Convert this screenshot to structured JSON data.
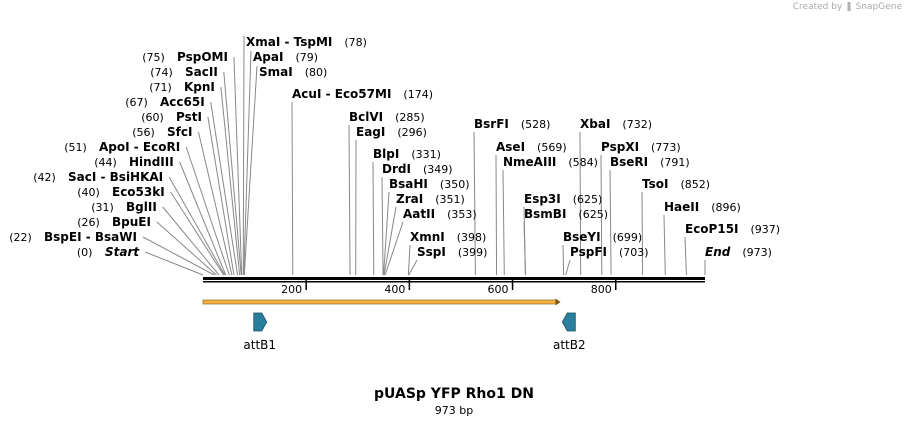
{
  "header": {
    "created_by": "Created by",
    "brand": "SnapGene"
  },
  "map": {
    "name": "pUASp YFP Rho1 DN",
    "length_label": "973 bp",
    "length": 973
  },
  "sites": [
    {
      "name": "XmaI",
      "name2": "TspMI",
      "pos": 78
    },
    {
      "name": "ApaI",
      "pos": 79
    },
    {
      "name": "SmaI",
      "pos": 80
    },
    {
      "name": "PspOMI",
      "pos": 75
    },
    {
      "name": "SacII",
      "pos": 74
    },
    {
      "name": "KpnI",
      "pos": 71
    },
    {
      "name": "Acc65I",
      "pos": 67
    },
    {
      "name": "PstI",
      "pos": 60
    },
    {
      "name": "SfcI",
      "pos": 56
    },
    {
      "name": "ApoI",
      "name2": "EcoRI",
      "pos": 51
    },
    {
      "name": "HindIII",
      "pos": 44
    },
    {
      "name": "SacI",
      "name2": "BsiHKAI",
      "pos": 42
    },
    {
      "name": "Eco53kI",
      "pos": 40
    },
    {
      "name": "BglII",
      "pos": 31
    },
    {
      "name": "BpuEI",
      "pos": 26
    },
    {
      "name": "BspEI",
      "name2": "BsaWI",
      "pos": 22
    },
    {
      "name": "Start",
      "pos": 0,
      "italic": true
    },
    {
      "name": "AcuI",
      "name2": "Eco57MI",
      "pos": 174
    },
    {
      "name": "BclVI",
      "pos": 285
    },
    {
      "name": "EagI",
      "pos": 296
    },
    {
      "name": "BlpI",
      "pos": 331
    },
    {
      "name": "DrdI",
      "pos": 349
    },
    {
      "name": "BsaHI",
      "pos": 350
    },
    {
      "name": "ZraI",
      "pos": 351
    },
    {
      "name": "AatII",
      "pos": 353
    },
    {
      "name": "XmnI",
      "pos": 398
    },
    {
      "name": "SspI",
      "pos": 399
    },
    {
      "name": "BsrFI",
      "pos": 528
    },
    {
      "name": "AseI",
      "pos": 569
    },
    {
      "name": "NmeAIII",
      "pos": 584
    },
    {
      "name": "Esp3I",
      "pos": 625
    },
    {
      "name": "BsmBI",
      "pos": 625
    },
    {
      "name": "BseYI",
      "pos": 699
    },
    {
      "name": "PspFI",
      "pos": 703
    },
    {
      "name": "XbaI",
      "pos": 732
    },
    {
      "name": "PspXI",
      "pos": 773
    },
    {
      "name": "BseRI",
      "pos": 791
    },
    {
      "name": "TsoI",
      "pos": 852
    },
    {
      "name": "HaeII",
      "pos": 896
    },
    {
      "name": "EcoP15I",
      "pos": 937
    },
    {
      "name": "End",
      "pos": 973,
      "italic": true
    }
  ],
  "ticks": [
    200,
    400,
    600,
    800
  ],
  "features": [
    {
      "name": "attB1",
      "direction": "forward",
      "center": 110
    },
    {
      "name": "attB2",
      "direction": "reverse",
      "center": 710
    }
  ],
  "orf": {
    "start": 0,
    "end": 693,
    "color": "#f5b041"
  },
  "colors": {
    "feature": "#2a7f9e",
    "backbone": "#000000",
    "orf": "#f5b041"
  }
}
